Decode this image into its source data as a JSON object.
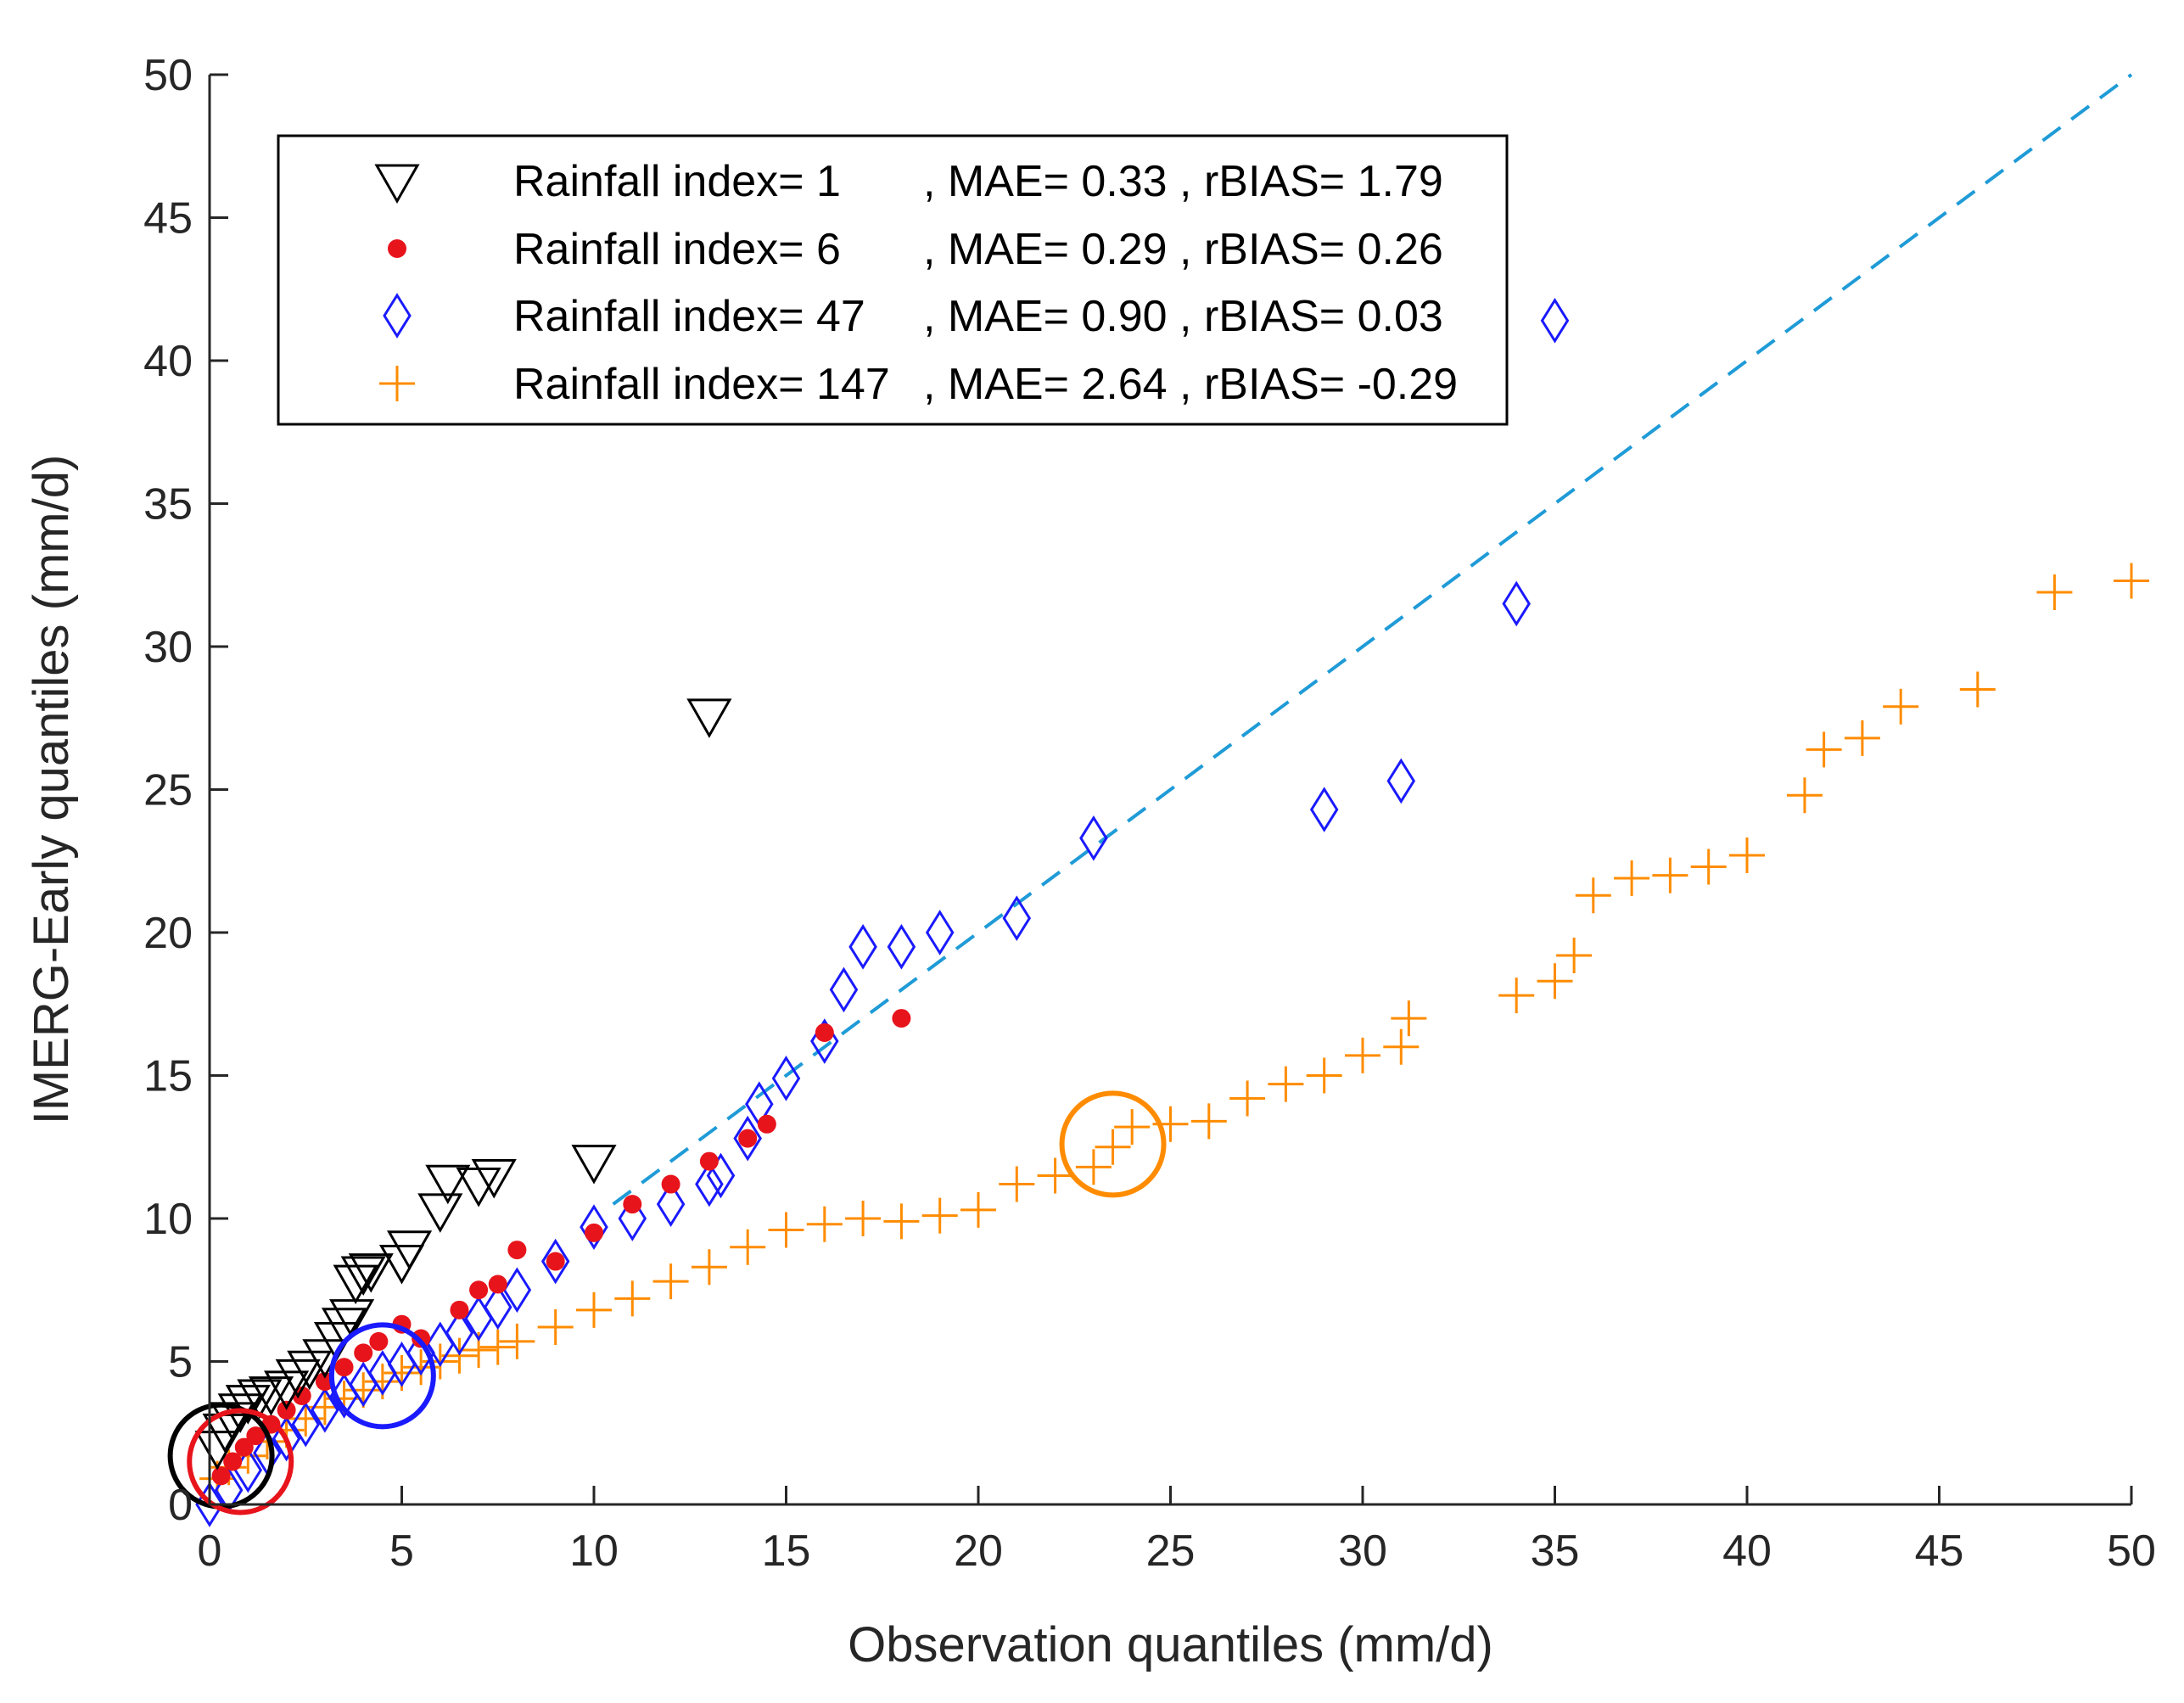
{
  "chart_data": {
    "type": "scatter",
    "title": "",
    "xlabel": "Observation quantiles (mm/d)",
    "ylabel": "IMERG-Early quantiles (mm/d)",
    "xlim": [
      0,
      50
    ],
    "ylim": [
      0,
      50
    ],
    "xticks": [
      0,
      5,
      10,
      15,
      20,
      25,
      30,
      35,
      40,
      45,
      50
    ],
    "yticks": [
      0,
      5,
      10,
      15,
      20,
      25,
      30,
      35,
      40,
      45,
      50
    ],
    "grid": false,
    "legend_position": "top-left",
    "reference_line": {
      "name": "1:1 line",
      "x": [
        10.5,
        50
      ],
      "y": [
        10.5,
        50
      ],
      "style": "dashed",
      "color": "#1f9bd7"
    },
    "series": [
      {
        "name": "Rainfall index= 1",
        "legend_text": [
          "Rainfall index= 1",
          ", MAE= 0.33 , rBIAS= 1.79"
        ],
        "marker": "triangle-down",
        "color": "#000000",
        "x": [
          0.2,
          0.4,
          0.6,
          0.8,
          1.0,
          1.3,
          1.6,
          2.0,
          2.3,
          2.6,
          3.0,
          3.3,
          3.5,
          3.7,
          3.8,
          4.0,
          4.2,
          5.0,
          5.2,
          6.0,
          6.2,
          7.0,
          7.4,
          10.0,
          13.0
        ],
        "y": [
          2.0,
          2.6,
          3.0,
          3.3,
          3.6,
          3.8,
          3.9,
          4.1,
          4.5,
          4.8,
          5.2,
          5.8,
          6.3,
          6.6,
          7.8,
          8.1,
          8.2,
          8.5,
          9.0,
          10.3,
          11.3,
          11.2,
          11.5,
          12.0,
          27.6
        ]
      },
      {
        "name": "Rainfall index= 6",
        "legend_text": [
          "Rainfall index= 6",
          ", MAE= 0.29 , rBIAS= 0.26"
        ],
        "marker": "dot",
        "color": "#e8141c",
        "x": [
          0.3,
          0.6,
          0.9,
          1.2,
          1.6,
          2.0,
          2.4,
          3.0,
          3.5,
          4.0,
          4.4,
          5.0,
          5.5,
          6.5,
          7.0,
          7.5,
          8.0,
          9.0,
          10.0,
          11.0,
          12.0,
          13.0,
          14.0,
          14.5,
          16.0,
          18.0
        ],
        "y": [
          1.0,
          1.5,
          2.0,
          2.4,
          2.8,
          3.3,
          3.8,
          4.3,
          4.8,
          5.3,
          5.7,
          6.3,
          5.8,
          6.8,
          7.5,
          7.7,
          8.9,
          8.5,
          9.5,
          10.5,
          11.2,
          12.0,
          12.8,
          13.3,
          16.5,
          17.0
        ]
      },
      {
        "name": "Rainfall index= 47",
        "legend_text": [
          "Rainfall index= 47",
          ", MAE= 0.90 , rBIAS= 0.03"
        ],
        "marker": "diamond",
        "color": "#1a1aff",
        "x": [
          0.0,
          0.5,
          1.0,
          1.5,
          2.0,
          2.5,
          3.0,
          3.5,
          4.0,
          4.5,
          5.0,
          5.5,
          6.0,
          6.5,
          7.0,
          7.5,
          8.0,
          9.0,
          10.0,
          11.0,
          12.0,
          13.0,
          13.3,
          14.0,
          14.3,
          15.0,
          16.0,
          16.5,
          17.0,
          18.0,
          19.0,
          21.0,
          23.0,
          29.0,
          31.0,
          34.0,
          35.0
        ],
        "y": [
          0.0,
          0.5,
          1.2,
          1.8,
          2.3,
          2.8,
          3.3,
          3.8,
          4.2,
          4.6,
          4.9,
          5.3,
          5.6,
          6.0,
          6.5,
          6.9,
          7.5,
          8.5,
          9.7,
          10.0,
          10.5,
          11.2,
          11.5,
          12.8,
          14.0,
          14.9,
          16.2,
          18.0,
          19.5,
          19.5,
          20.0,
          20.5,
          23.3,
          24.3,
          25.3,
          31.5,
          41.4
        ]
      },
      {
        "name": "Rainfall index= 147",
        "legend_text": [
          "Rainfall index= 147",
          ", MAE= 2.64 , rBIAS= -0.29"
        ],
        "marker": "plus",
        "color": "#ff8c00",
        "x": [
          0.2,
          0.5,
          1.0,
          1.5,
          2.0,
          2.5,
          3.0,
          3.5,
          4.0,
          4.5,
          5.0,
          5.5,
          6.0,
          6.5,
          7.0,
          7.5,
          8.0,
          9.0,
          10.0,
          11.0,
          12.0,
          13.0,
          14.0,
          15.0,
          16.0,
          17.0,
          18.0,
          19.0,
          20.0,
          21.0,
          22.0,
          23.0,
          23.5,
          24.0,
          25.0,
          26.0,
          27.0,
          28.0,
          29.0,
          30.0,
          31.0,
          31.2,
          34.0,
          35.0,
          35.5,
          36.0,
          37.0,
          38.0,
          39.0,
          40.0,
          41.5,
          42.0,
          43.0,
          44.0,
          46.0,
          48.0,
          50.0
        ],
        "y": [
          0.9,
          1.3,
          1.7,
          2.2,
          2.6,
          3.0,
          3.4,
          3.7,
          4.0,
          4.3,
          4.6,
          4.8,
          5.0,
          5.2,
          5.4,
          5.5,
          5.7,
          6.2,
          6.8,
          7.2,
          7.8,
          8.3,
          9.0,
          9.6,
          9.8,
          10.0,
          9.9,
          10.1,
          10.3,
          11.2,
          11.5,
          11.8,
          12.5,
          13.2,
          13.3,
          13.4,
          14.2,
          14.7,
          15.0,
          15.7,
          16.0,
          17.0,
          17.8,
          18.3,
          19.2,
          21.3,
          21.9,
          22.0,
          22.3,
          22.7,
          24.8,
          26.4,
          26.8,
          27.9,
          28.5,
          31.9,
          32.3
        ]
      }
    ],
    "annotations": [
      {
        "type": "circle",
        "x": 0.3,
        "y": 1.7,
        "color": "#000000"
      },
      {
        "type": "circle",
        "x": 0.8,
        "y": 1.5,
        "color": "#e8141c"
      },
      {
        "type": "circle",
        "x": 4.5,
        "y": 4.5,
        "color": "#1a1aff"
      },
      {
        "type": "circle",
        "x": 23.5,
        "y": 12.6,
        "color": "#ff8c00"
      }
    ]
  }
}
